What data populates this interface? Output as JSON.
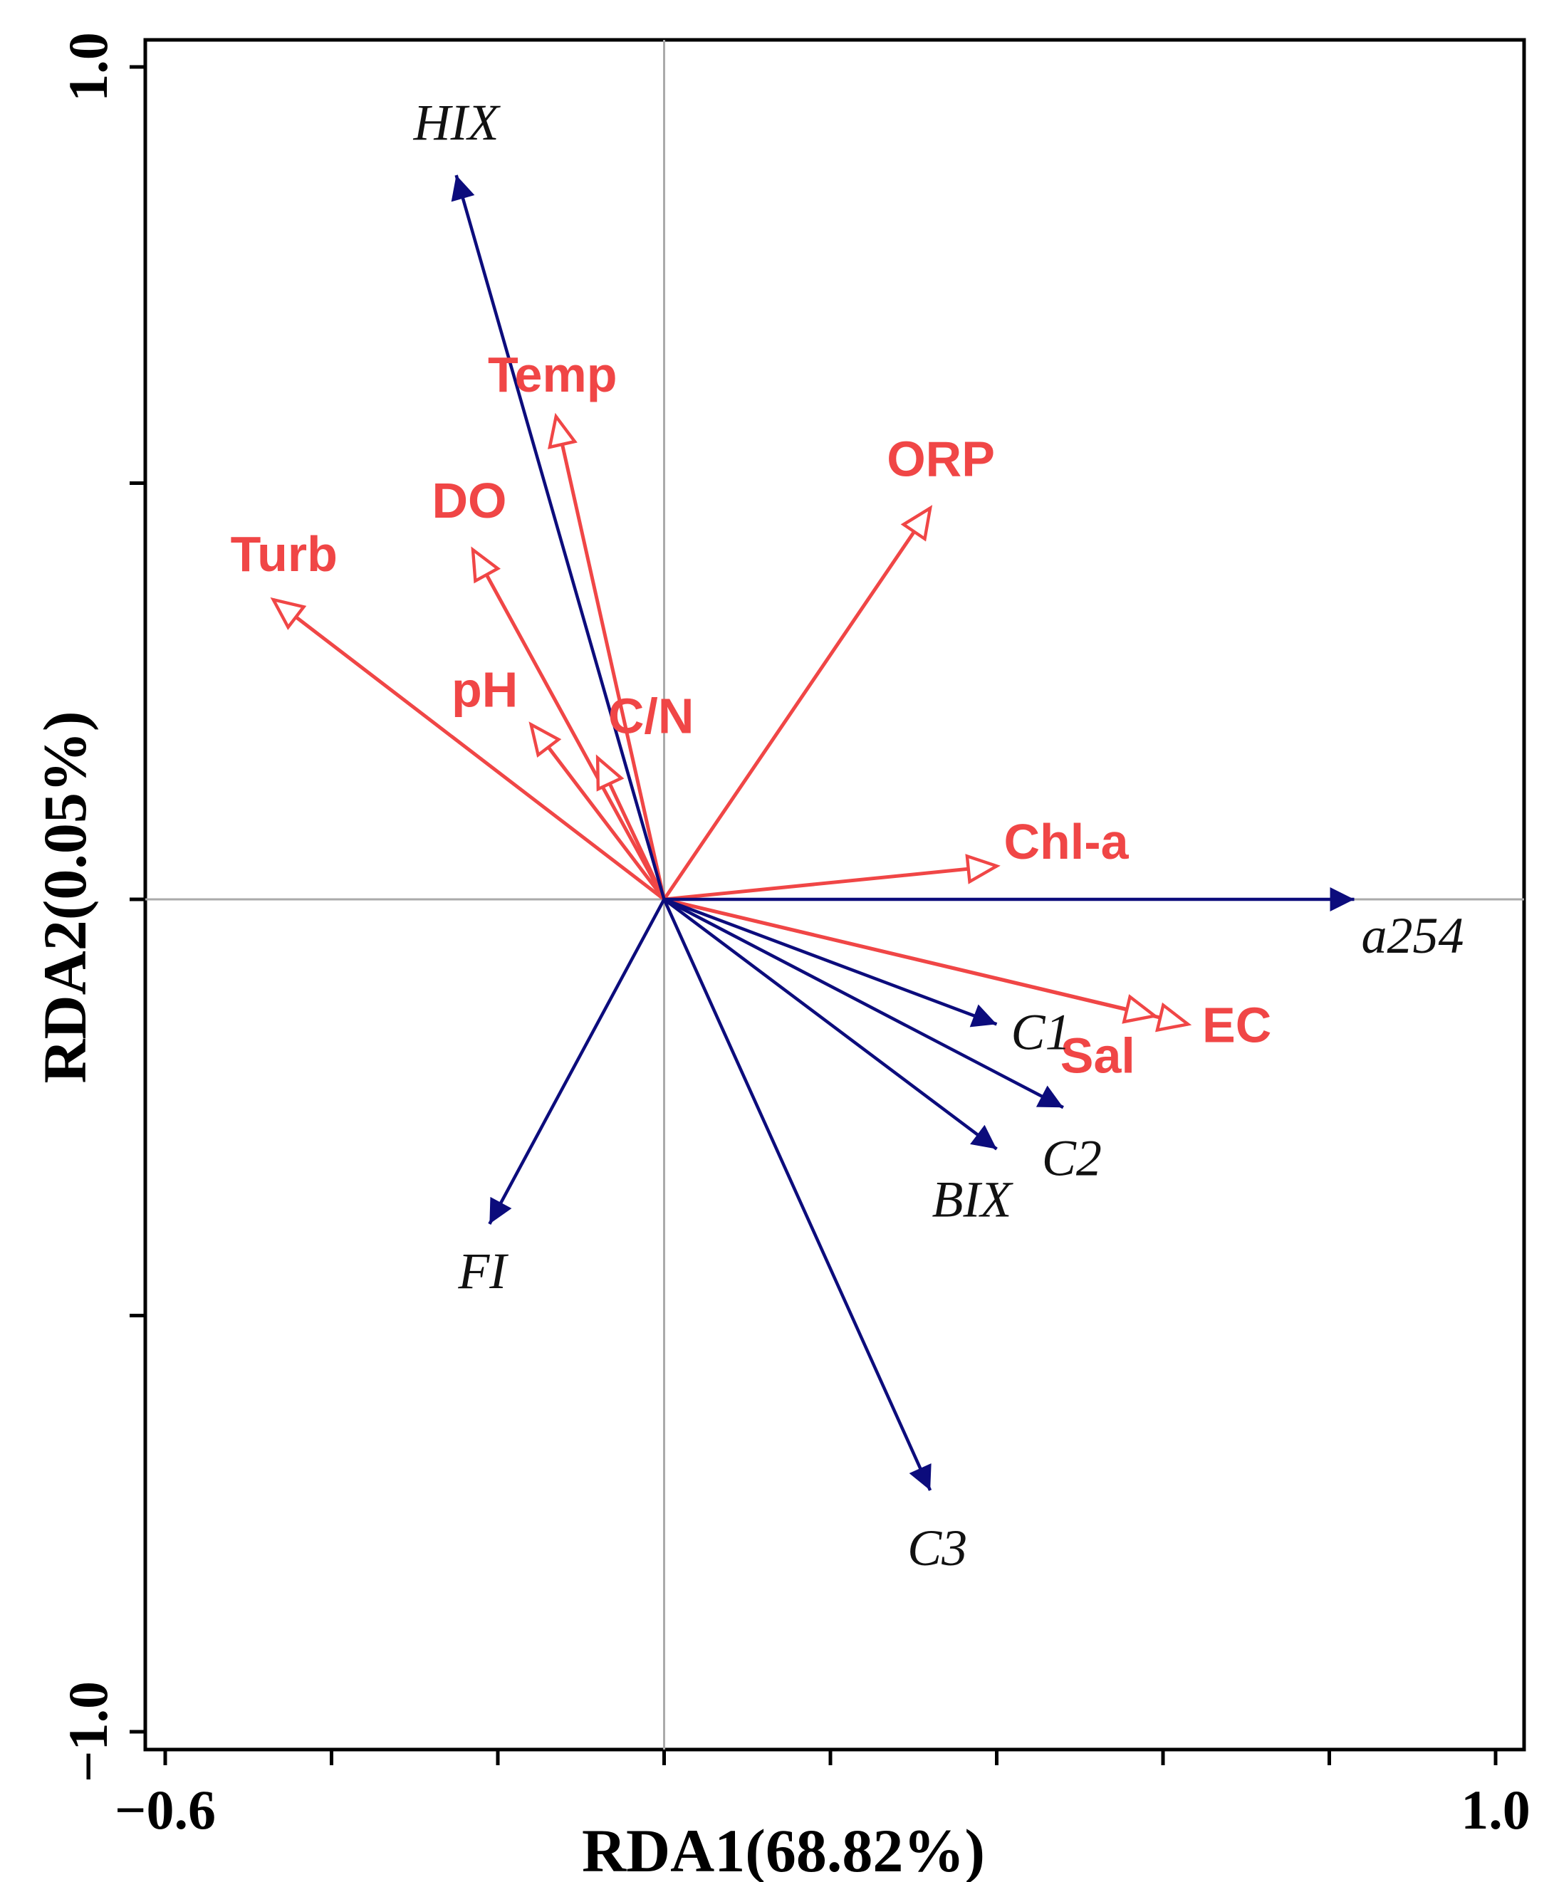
{
  "chart_data": {
    "type": "scatter",
    "subtype": "rda-biplot",
    "title": "",
    "xlabel": "RDA1(68.82%)",
    "ylabel": "RDA2(0.05%)",
    "xlim": [
      -0.6,
      1.0
    ],
    "ylim": [
      -1.0,
      1.0
    ],
    "x_tick_labels": [
      {
        "value": -0.6,
        "label": "−0.6"
      },
      {
        "value": 1.0,
        "label": "1.0"
      }
    ],
    "y_tick_labels": [
      {
        "value": 1.0,
        "label": "1.0"
      },
      {
        "value": -1.0,
        "label": "−1.0"
      }
    ],
    "x_minor_ticks": [
      -0.6,
      -0.4,
      -0.2,
      0.0,
      0.2,
      0.4,
      0.6,
      0.8,
      1.0
    ],
    "y_minor_ticks": [
      -1.0,
      -0.5,
      0.0,
      0.5,
      1.0
    ],
    "zero_lines": true,
    "response_color": "#0c0c7c",
    "explanatory_color": "#f04646",
    "response_variables": [
      {
        "name": "HIX",
        "x": -0.25,
        "y": 0.87
      },
      {
        "name": "a254",
        "x": 0.83,
        "y": 0.0
      },
      {
        "name": "C1",
        "x": 0.4,
        "y": -0.15
      },
      {
        "name": "C2",
        "x": 0.48,
        "y": -0.25
      },
      {
        "name": "BIX",
        "x": 0.4,
        "y": -0.3
      },
      {
        "name": "FI",
        "x": -0.21,
        "y": -0.39
      },
      {
        "name": "C3",
        "x": 0.32,
        "y": -0.71
      }
    ],
    "explanatory_variables": [
      {
        "name": "Temp",
        "x": -0.13,
        "y": 0.58
      },
      {
        "name": "ORP",
        "x": 0.32,
        "y": 0.47
      },
      {
        "name": "DO",
        "x": -0.23,
        "y": 0.42
      },
      {
        "name": "Turb",
        "x": -0.47,
        "y": 0.36
      },
      {
        "name": "pH",
        "x": -0.16,
        "y": 0.21
      },
      {
        "name": "C/N",
        "x": -0.08,
        "y": 0.17
      },
      {
        "name": "Chl-a",
        "x": 0.4,
        "y": 0.04
      },
      {
        "name": "EC",
        "x": 0.63,
        "y": -0.15
      },
      {
        "name": "Sal",
        "x": 0.59,
        "y": -0.14
      }
    ]
  }
}
